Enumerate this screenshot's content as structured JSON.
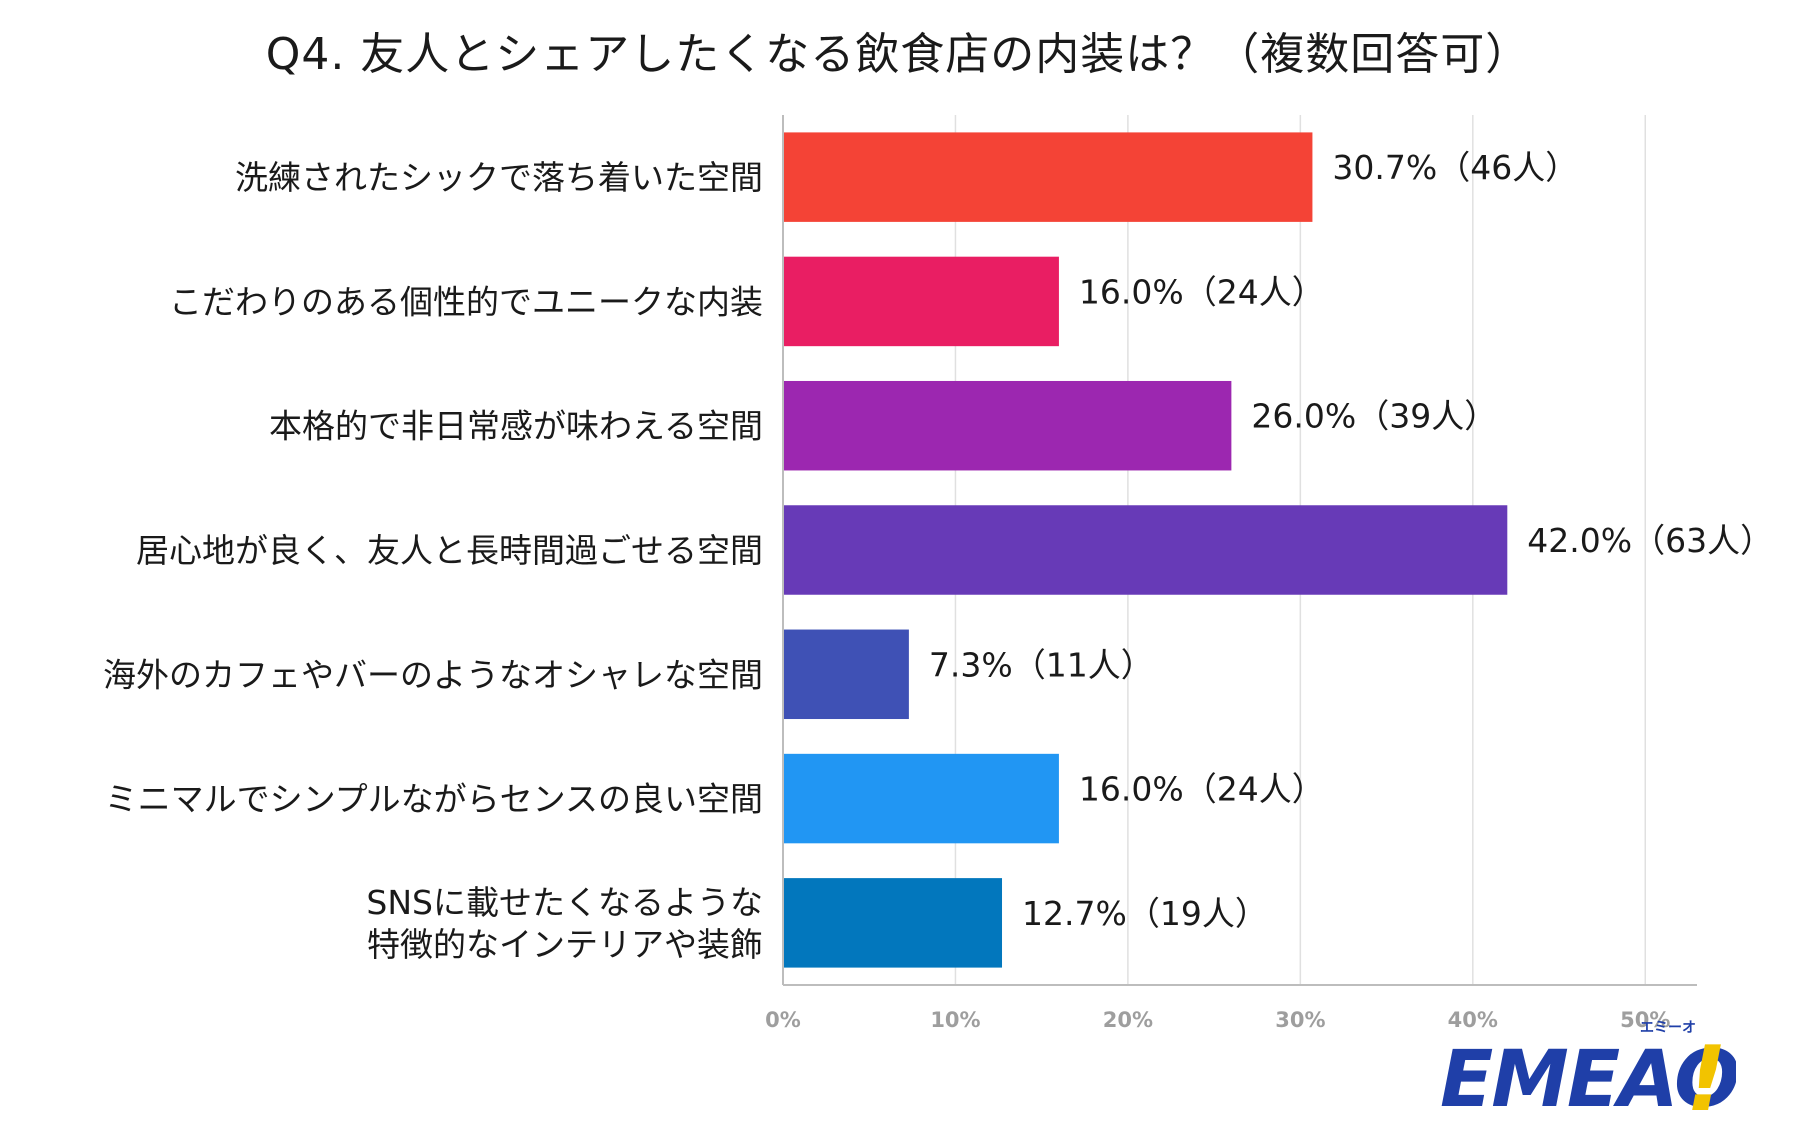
{
  "chart_data": {
    "type": "bar",
    "orientation": "horizontal",
    "title": "Q4. 友人とシェアしたくなる飲食店の内装は？（複数回答可）",
    "categories": [
      [
        "洗練されたシックで落ち着いた空間"
      ],
      [
        "こだわりのある個性的でユニークな内装"
      ],
      [
        "本格的で非日常感が味わえる空間"
      ],
      [
        "居心地が良く、友人と長時間過ごせる空間"
      ],
      [
        "海外のカフェやバーのようなオシャレな空間"
      ],
      [
        "ミニマルでシンプルながらセンスの良い空間"
      ],
      [
        "SNSに載せたくなるような",
        "特徴的なインテリアや装飾"
      ]
    ],
    "values": [
      30.7,
      16.0,
      26.0,
      42.0,
      7.3,
      16.0,
      12.7
    ],
    "data_labels": [
      "30.7%（46人）",
      "16.0%（24人）",
      "26.0%（39人）",
      "42.0%（63人）",
      "7.3%（11人）",
      "16.0%（24人）",
      "12.7%（19人）"
    ],
    "colors": [
      "#f44336",
      "#e91e63",
      "#9c27b0",
      "#673ab7",
      "#3f51b5",
      "#2196f3",
      "#0277bd"
    ],
    "x_ticks": [
      "0%",
      "10%",
      "20%",
      "30%",
      "40%",
      "50%"
    ],
    "x_tick_values": [
      0,
      10,
      20,
      30,
      40,
      50
    ],
    "xlim": [
      0,
      53
    ],
    "grid": true,
    "gridline_color": "#e0e0e0",
    "axis_color": "#bdbdbd",
    "xlabel": "",
    "ylabel": ""
  },
  "logo": {
    "text": "EMEAO",
    "exclamation": "!",
    "kana": "エミーオ",
    "color": "#1f3fa8",
    "accent_color": "#f2c300"
  }
}
